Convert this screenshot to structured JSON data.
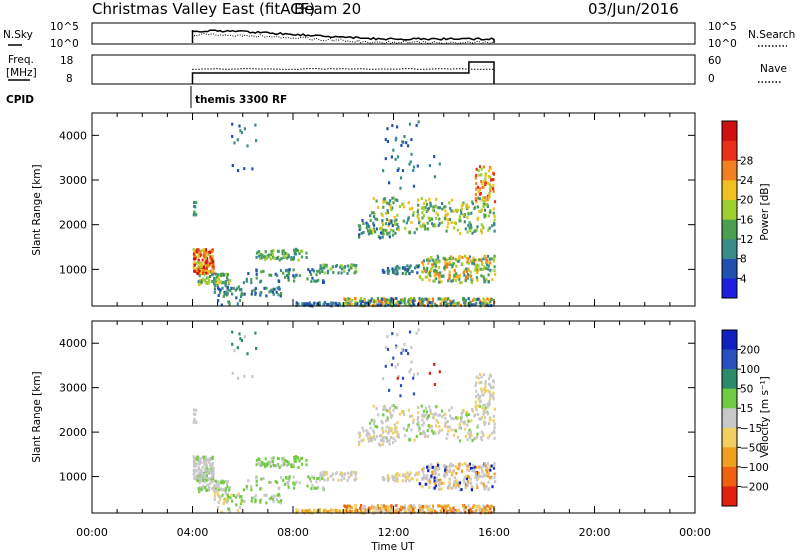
{
  "header": {
    "title": "Christmas Valley East (fitACF)",
    "beam": "Beam 20",
    "date": "03/Jun/2016"
  },
  "chart_data": [
    {
      "type": "line",
      "name": "top-panel-sky-search",
      "left_label": "N.Sky",
      "right_label": "N.Search",
      "left_ticks": [
        "10^5",
        "10^0"
      ],
      "right_ticks": [
        "10^5",
        "10^0"
      ],
      "scale": "log",
      "x_range_hours": [
        0,
        24
      ],
      "data_start_hour": 4,
      "data_end_hour": 16
    },
    {
      "type": "line",
      "name": "freq-nave-panel",
      "left_label_lines": [
        "Freq.",
        "[MHz]"
      ],
      "right_label": "Nave",
      "left_ticks": [
        "18",
        "8"
      ],
      "right_ticks": [
        "60",
        "0"
      ],
      "ylim_left": [
        8,
        18
      ],
      "ylim_right": [
        0,
        60
      ]
    },
    {
      "type": "table",
      "name": "cpid-row",
      "label": "CPID",
      "program": "themis 3300 RF"
    },
    {
      "type": "heatmap",
      "name": "power-panel",
      "ylabel": "Slant Range [km]",
      "ylim": [
        180,
        4500
      ],
      "y_ticks": [
        1000,
        2000,
        3000,
        4000
      ],
      "x_range_hours": [
        0,
        24
      ],
      "colorbar_label": "Power [dB]",
      "colorbar_ticks": [
        "4",
        "8",
        "12",
        "16",
        "20",
        "24",
        "28"
      ],
      "colorbar_colors": [
        "#1e1ee0",
        "#2050b0",
        "#3a8a8a",
        "#4aa050",
        "#a0d030",
        "#f0c020",
        "#f08020",
        "#e83018",
        "#d01010"
      ]
    },
    {
      "type": "heatmap",
      "name": "velocity-panel",
      "ylabel": "Slant Range [km]",
      "ylim": [
        180,
        4500
      ],
      "y_ticks": [
        1000,
        2000,
        3000,
        4000
      ],
      "x_range_hours": [
        0,
        24
      ],
      "colorbar_label": "Velocity [m s⁻¹]",
      "colorbar_ticks": [
        "200",
        "100",
        "50",
        "15",
        "−15",
        "−50",
        "−100",
        "−200"
      ],
      "colorbar_colors": [
        "#1020c0",
        "#2a50c0",
        "#2a8a6a",
        "#70cc40",
        "#c8c8c8",
        "#f0d060",
        "#f0a020",
        "#f06010",
        "#e02010"
      ]
    }
  ],
  "x_axis": {
    "xlabel": "Time UT",
    "tick_labels": [
      "00:00",
      "04:00",
      "08:00",
      "12:00",
      "16:00",
      "20:00",
      "00:00"
    ]
  }
}
